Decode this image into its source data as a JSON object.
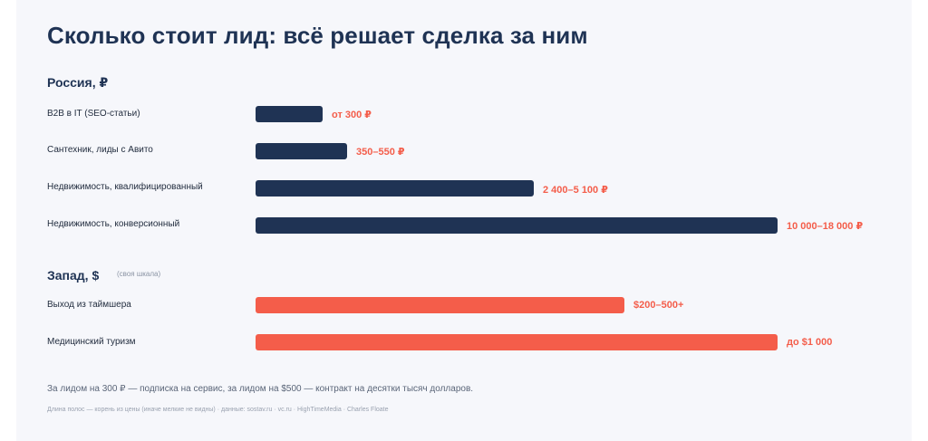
{
  "colors": {
    "russia_bar": "#1f3354",
    "west_bar": "#f45d4a",
    "value_text": "#f45d4a"
  },
  "chart_data": {
    "type": "bar",
    "orientation": "horizontal",
    "title": "Сколько стоит лид: всё решает сделка за ним",
    "groups": [
      {
        "id": "russia",
        "title": "Россия, ₽",
        "note": "",
        "rows": [
          {
            "label": "B2B в IT (SEO-статьи)",
            "value_label": "от 300 ₽",
            "value": 300
          },
          {
            "label": "Сантехник, лиды с Авито",
            "value_label": "350–550 ₽",
            "value": 550
          },
          {
            "label": "Недвижимость, квалифицированный",
            "value_label": "2 400–5 100 ₽",
            "value": 5100
          },
          {
            "label": "Недвижимость, конверсионный",
            "value_label": "10 000–18 000 ₽",
            "value": 18000
          }
        ]
      },
      {
        "id": "west",
        "title": "Запад, $",
        "note": "(своя шкала)",
        "rows": [
          {
            "label": "Выход из таймшера",
            "value_label": "$200–500+",
            "value": 500
          },
          {
            "label": "Медицинский туризм",
            "value_label": "до $1 000",
            "value": 1000
          }
        ]
      }
    ],
    "scale": "sqrt",
    "footnote": "За лидом на 300 ₽ — подписка на сервис, за лидом на $500 — контракт на десятки тысяч долларов.",
    "source": "Длина полос — корень из цены (иначе мелкие не видны) · данные: sostav.ru · vc.ru · HighTimeMedia · Charles Floate"
  }
}
